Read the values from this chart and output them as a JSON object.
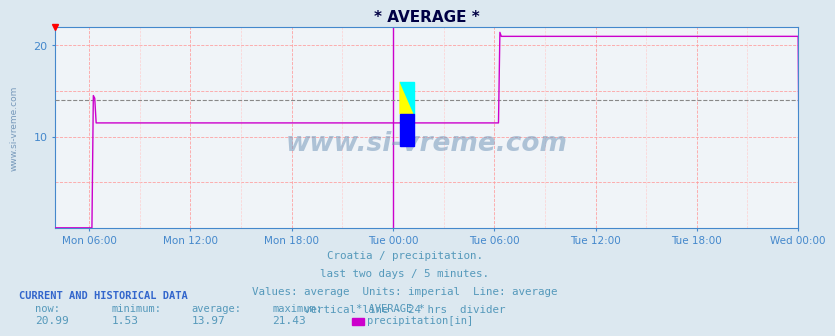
{
  "title": "* AVERAGE *",
  "bg_color": "#dce8f0",
  "plot_bg_color": "#f0f4f8",
  "line_color": "#cc00cc",
  "avg_line_color": "#999999",
  "grid_color_major": "#ff9999",
  "grid_color_minor": "#ffcccc",
  "axis_color": "#4488cc",
  "text_color": "#5599bb",
  "title_color": "#000044",
  "subtitle_lines": [
    "Croatia / precipitation.",
    "last two days / 5 minutes.",
    "Values: average  Units: imperial  Line: average",
    "vertical line - 24 hrs  divider"
  ],
  "footer_label": "CURRENT AND HISTORICAL DATA",
  "footer_cols": [
    "now:",
    "minimum:",
    "average:",
    "maximum:",
    "* AVERAGE *"
  ],
  "footer_vals": [
    "20.99",
    "1.53",
    "13.97",
    "21.43"
  ],
  "legend_label": "precipitation[in]",
  "legend_color": "#cc00cc",
  "ylabel_text": "www.si-vreme.com",
  "x_tick_labels": [
    "Mon 06:00",
    "Mon 12:00",
    "Mon 18:00",
    "Tue 00:00",
    "Tue 06:00",
    "Tue 12:00",
    "Tue 18:00",
    "Wed 00:00"
  ],
  "ylim": [
    0,
    22
  ],
  "yticks": [
    10,
    20
  ],
  "average_value": 13.97,
  "watermark": "www.si-vreme.com",
  "watermark_color": "#7799bb"
}
